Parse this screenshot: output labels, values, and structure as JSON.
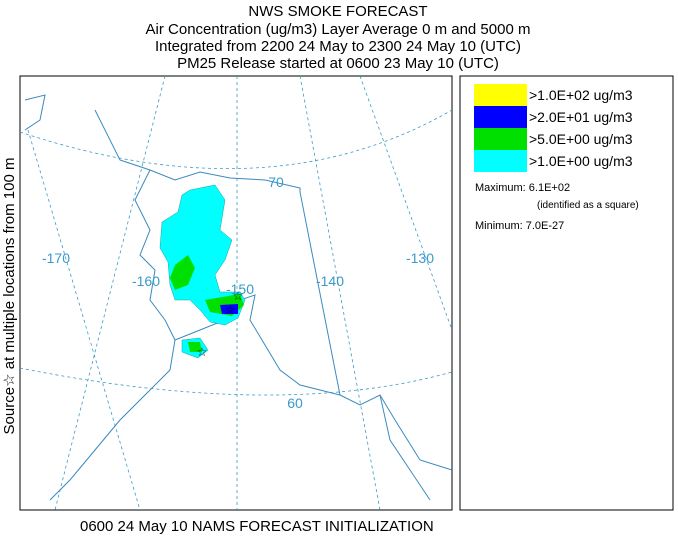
{
  "header": {
    "lines": [
      "NWS SMOKE FORECAST",
      "Air Concentration (ug/m3) Layer Average    0 m and  5000 m",
      "Integrated from 2200 24 May to 2300 24 May 10 (UTC)",
      "PM25 Release started at 0600 23 May 10 (UTC)"
    ]
  },
  "side_label": "Source☆ at multiple locations from  100 m",
  "map": {
    "longitude_labels": [
      "-170",
      "-160",
      "-150",
      "-140",
      "-130"
    ],
    "latitude_labels": [
      "70",
      "60"
    ]
  },
  "legend": {
    "items": [
      {
        "label": ">1.0E+02 ug/m3",
        "color": "#ffff00"
      },
      {
        "label": ">2.0E+01 ug/m3",
        "color": "#0000ff"
      },
      {
        "label": ">5.0E+00 ug/m3",
        "color": "#00e000"
      },
      {
        "label": ">1.0E+00 ug/m3",
        "color": "#00ffff"
      }
    ]
  },
  "stats": {
    "maximum": "Maximum: 6.1E+02",
    "maximum_note": "(identified as a square)",
    "minimum": "Minimum: 7.0E-27"
  },
  "footer": "0600 24 May 10 NAMS FORECAST INITIALIZATION"
}
